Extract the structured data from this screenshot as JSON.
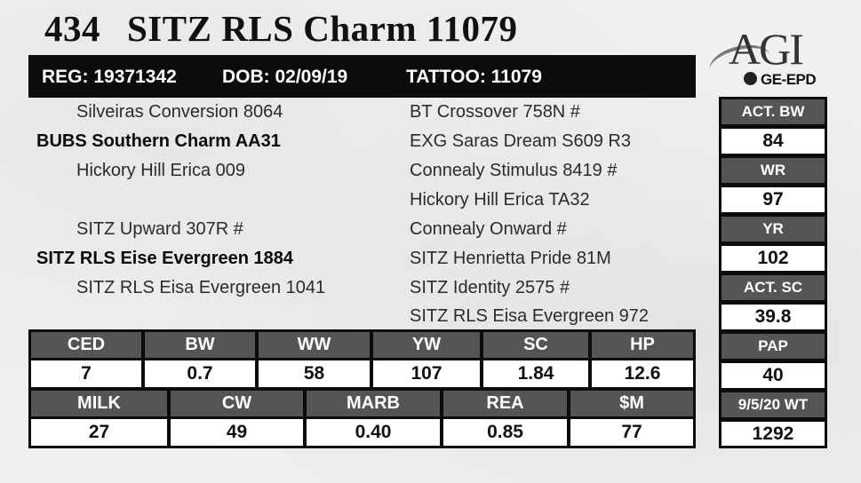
{
  "header": {
    "lot": "434",
    "name": "SITZ RLS Charm 11079",
    "logo_main": "AGI",
    "logo_sub": "GE-EPD"
  },
  "reg_bar": {
    "reg": "REG: 19371342",
    "dob": "DOB: 02/09/19",
    "tattoo": "TATTOO: 11079"
  },
  "pedigree": [
    "Silveiras Conversion 8064",
    "BUBS Southern Charm AA31",
    "Hickory Hill Erica 009",
    "SITZ Upward 307R #",
    "SITZ RLS Eise Evergreen 1884",
    "SITZ RLS Eisa Evergreen 1041",
    "BT Crossover 758N #",
    "EXG Saras Dream S609 R3",
    "Connealy Stimulus 8419 #",
    "Hickory Hill Erica TA32",
    "Connealy Onward #",
    "SITZ Henrietta Pride 81M",
    "SITZ Identity 2575 #",
    "SITZ RLS Eisa Evergreen 972"
  ],
  "side_stats": [
    {
      "label": "ACT. BW",
      "value": "84"
    },
    {
      "label": "WR",
      "value": "97"
    },
    {
      "label": "YR",
      "value": "102"
    },
    {
      "label": "ACT. SC",
      "value": "39.8"
    },
    {
      "label": "PAP",
      "value": "40"
    },
    {
      "label": "9/5/20 WT",
      "value": "1292"
    }
  ],
  "epd_row1": [
    {
      "label": "CED",
      "value": "7"
    },
    {
      "label": "BW",
      "value": "0.7"
    },
    {
      "label": "WW",
      "value": "58"
    },
    {
      "label": "YW",
      "value": "107"
    },
    {
      "label": "SC",
      "value": "1.84"
    },
    {
      "label": "HP",
      "value": "12.6"
    }
  ],
  "epd_row2": [
    {
      "label": "MILK",
      "value": "27"
    },
    {
      "label": "CW",
      "value": "49"
    },
    {
      "label": "MARB",
      "value": "0.40"
    },
    {
      "label": "REA",
      "value": "0.85"
    },
    {
      "label": "$M",
      "value": "77"
    }
  ]
}
